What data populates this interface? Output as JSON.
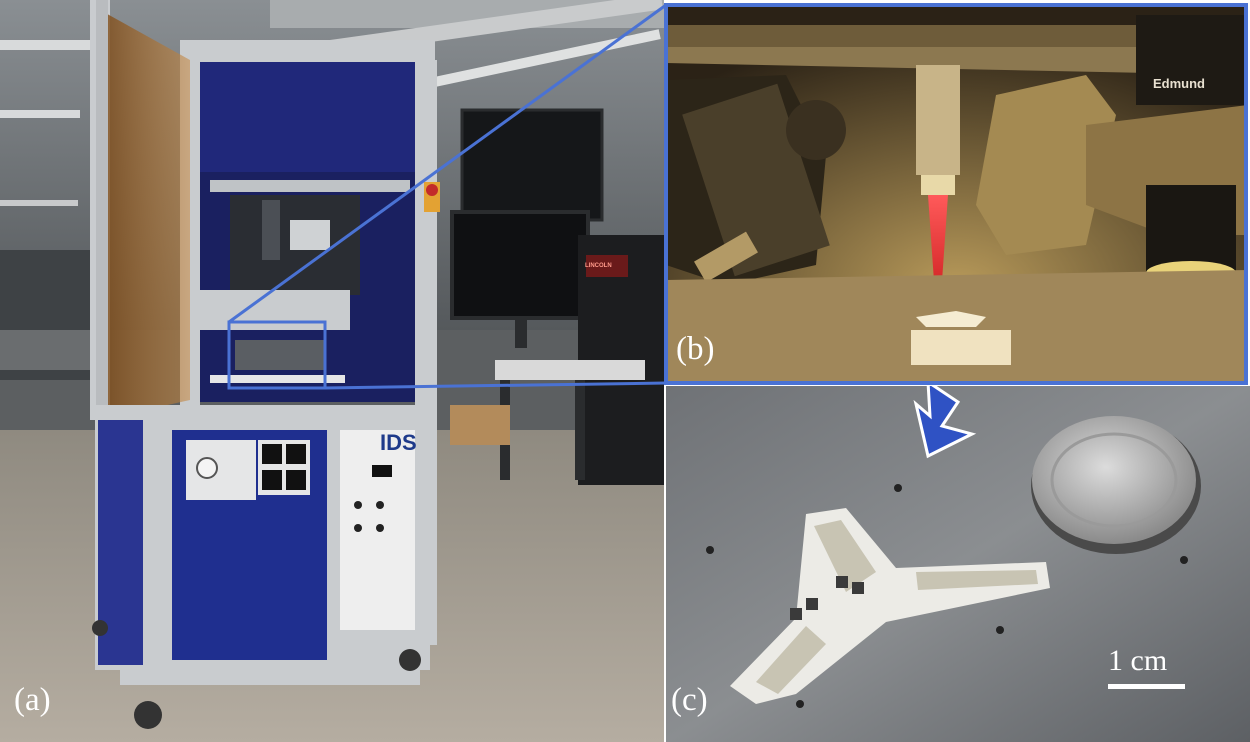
{
  "panels": {
    "a": {
      "label": "(a)"
    },
    "b": {
      "label": "(b)"
    },
    "c": {
      "label": "(c)"
    }
  },
  "scale_bar": {
    "text": "1 cm"
  },
  "machine_logo": {
    "text": "IDS"
  },
  "camera_brand": {
    "text": "Edmund"
  },
  "cabinet_brand": {
    "text": "LINCOLN"
  },
  "colors": {
    "zoom_box": "#4a72d4",
    "arrow": "#2f52c4",
    "cabinet_panel": "#1f2f8f"
  }
}
